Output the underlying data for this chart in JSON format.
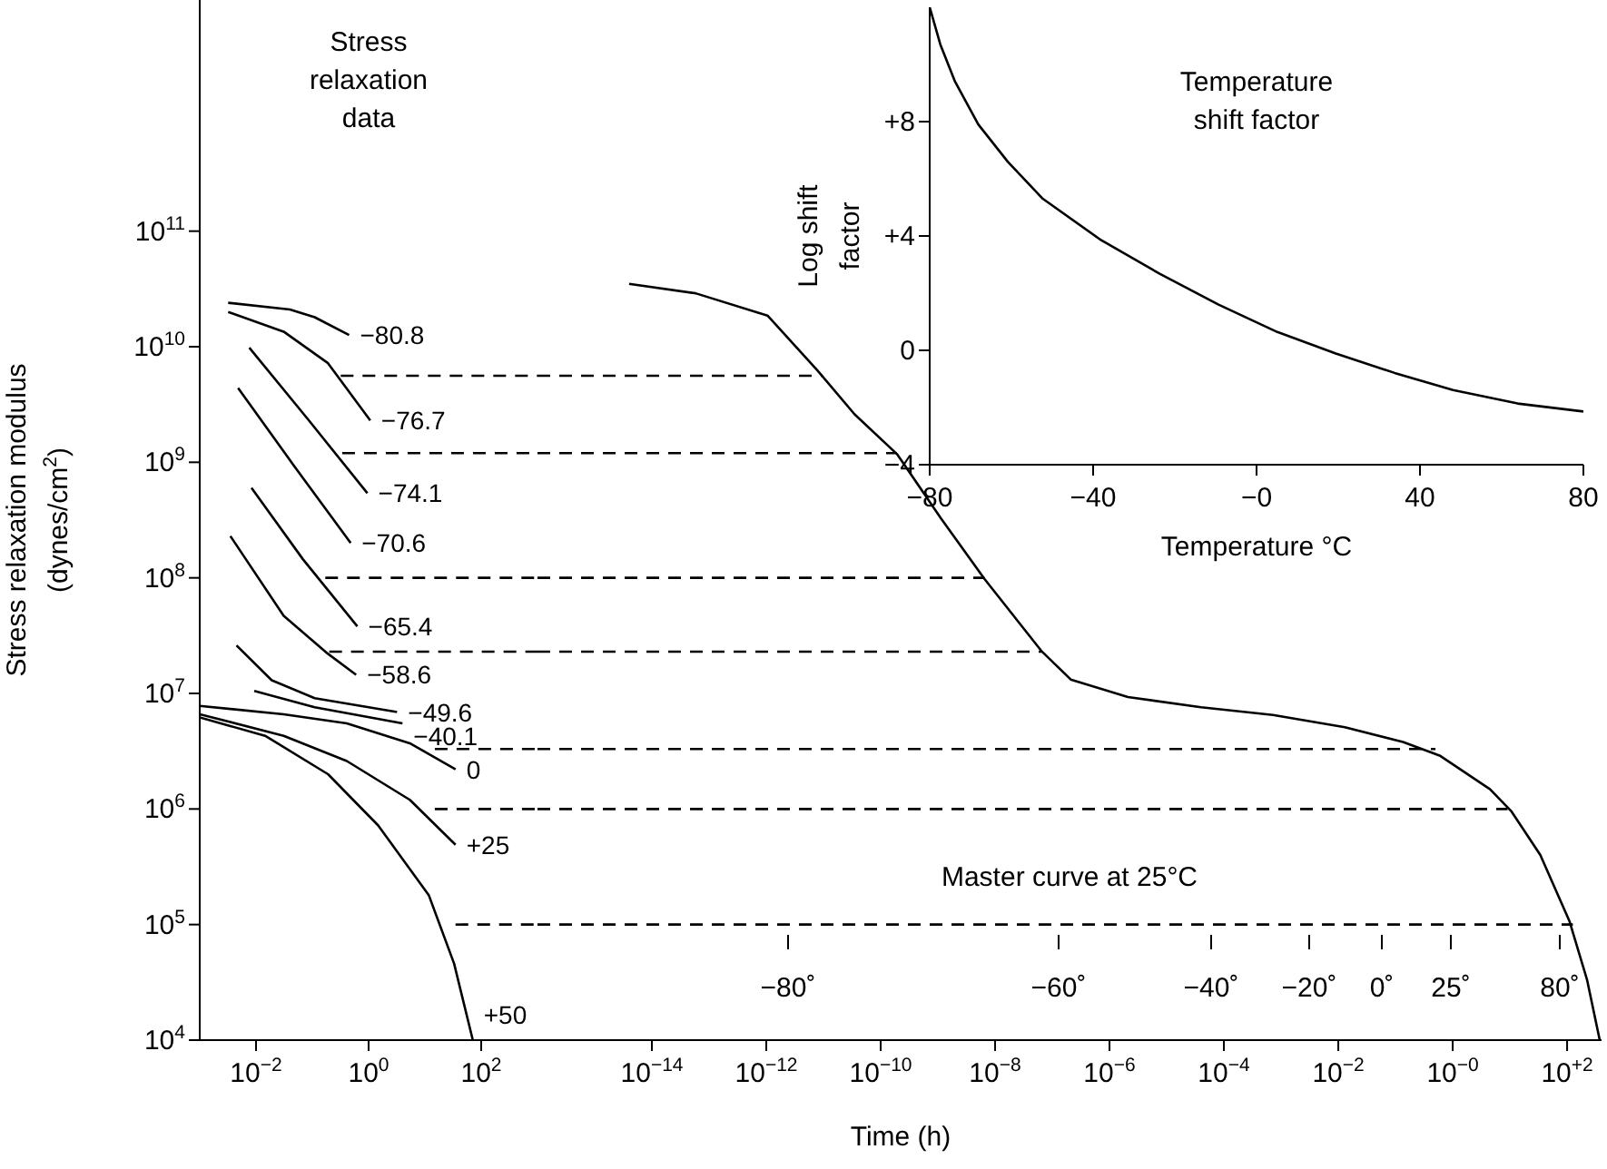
{
  "chart_data": [
    {
      "type": "line",
      "title": "Stress relaxation data",
      "ylabel": "Stress relaxation modulus (dynes/cm$^{2}$)",
      "log": "xy",
      "xlim": [
        0.001,
        1000
      ],
      "ylim": [
        10000,
        10000000000000
      ],
      "xticks": [
        {
          "value": 0.01,
          "label": "10$^{−2}$"
        },
        {
          "value": 1,
          "label": "10$^{0}$"
        },
        {
          "value": 100,
          "label": "10$^{2}$"
        }
      ],
      "yticks": [
        {
          "value": 10000,
          "label": "10$^{4}$"
        },
        {
          "value": 100000,
          "label": "10$^{5}$"
        },
        {
          "value": 1000000,
          "label": "10$^{6}$"
        },
        {
          "value": 10000000,
          "label": "10$^{7}$"
        },
        {
          "value": 100000000,
          "label": "10$^{8}$"
        },
        {
          "value": 1000000000,
          "label": "10$^{9}$"
        },
        {
          "value": 10000000000,
          "label": "10$^{10}$"
        },
        {
          "value": 100000000000,
          "label": "10$^{11}$"
        }
      ],
      "series": [
        {
          "name": "−80.8",
          "color": "#000000",
          "x": [
            0.0032,
            0.04,
            0.11,
            0.45
          ],
          "values": [
            24000000000,
            21000000000,
            18000000000,
            12600000000
          ]
        },
        {
          "name": "−76.7",
          "color": "#000000",
          "x": [
            0.0032,
            0.031,
            0.19,
            1.07
          ],
          "values": [
            20000000000,
            13500000000,
            7200000000,
            2300000000
          ]
        },
        {
          "name": "−74.1",
          "color": "#000000",
          "x": [
            0.0076,
            0.087,
            0.95
          ],
          "values": [
            9800000000,
            2300000000,
            540000000
          ]
        },
        {
          "name": "−70.6",
          "color": "#000000",
          "x": [
            0.0048,
            0.046,
            0.48
          ],
          "values": [
            4400000000,
            950000000,
            200000000
          ]
        },
        {
          "name": "−65.4",
          "color": "#000000",
          "x": [
            0.0083,
            0.068,
            0.63
          ],
          "values": [
            600000000,
            145000000,
            38000000
          ]
        },
        {
          "name": "−58.6",
          "color": "#000000",
          "x": [
            0.0035,
            0.031,
            0.19,
            0.6
          ],
          "values": [
            230000000,
            47000000,
            22000000,
            14500000
          ]
        },
        {
          "name": "−49.6",
          "color": "#000000",
          "x": [
            0.0045,
            0.019,
            0.11,
            3.2
          ],
          "values": [
            26000000,
            13000000,
            9100000,
            6900000
          ]
        },
        {
          "name": "−40.1",
          "color": "#000000",
          "x": [
            0.0093,
            0.11,
            4.0
          ],
          "values": [
            10500000,
            7600000,
            5500000
          ]
        },
        {
          "name": "0",
          "color": "#000000",
          "x": [
            0.001,
            0.031,
            0.41,
            5.4,
            35
          ],
          "values": [
            7800000,
            6600000,
            5500000,
            3700000,
            2200000
          ]
        },
        {
          "name": "+25",
          "color": "#000000",
          "x": [
            0.001,
            0.031,
            0.41,
            5.4,
            35
          ],
          "values": [
            6600000,
            4300000,
            2600000,
            1200000,
            490000
          ]
        },
        {
          "name": "+50",
          "color": "#000000",
          "x": [
            0.001,
            0.0145,
            0.19,
            1.48,
            11.7,
            33,
            71
          ],
          "values": [
            6200000,
            4300000,
            2000000,
            720000,
            180000,
            46000,
            10000
          ]
        },
        {
          "color": "#000000",
          "line_style": "dashed",
          "x": [
            0.32,
            1000
          ],
          "values": [
            5600000000,
            5600000000
          ]
        },
        {
          "color": "#000000",
          "line_style": "dashed",
          "x": [
            0.34,
            1000
          ],
          "values": [
            1200000000,
            1200000000
          ]
        },
        {
          "color": "#000000",
          "line_style": "dashed",
          "x": [
            0.17,
            1000
          ],
          "values": [
            100000000,
            100000000
          ]
        },
        {
          "color": "#000000",
          "line_style": "dashed",
          "x": [
            0.2,
            1000
          ],
          "values": [
            23000000,
            23000000
          ]
        },
        {
          "color": "#000000",
          "line_style": "dashed",
          "x": [
            15,
            1000
          ],
          "values": [
            3300000,
            3300000
          ]
        },
        {
          "color": "#000000",
          "line_style": "dashed",
          "x": [
            15,
            1000
          ],
          "values": [
            1000000,
            1000000
          ]
        },
        {
          "color": "#000000",
          "line_style": "dashed",
          "x": [
            35,
            1000
          ],
          "values": [
            100000,
            100000
          ]
        }
      ]
    },
    {
      "type": "line",
      "xlabel": "Time (h)",
      "log": "xy",
      "tick_labels": "x",
      "xlim": [
        1e-16,
        400
      ],
      "ylim": [
        10000,
        10000000000000
      ],
      "xticks": [
        {
          "value": 1e-14,
          "label": "10$^{−14}$"
        },
        {
          "value": 1e-12,
          "label": "10$^{−12}$"
        },
        {
          "value": 1e-10,
          "label": "10$^{−10}$"
        },
        {
          "value": 1e-08,
          "label": "10$^{−8}$"
        },
        {
          "value": 1e-06,
          "label": "10$^{−6}$"
        },
        {
          "value": 0.0001,
          "label": "10$^{−4}$"
        },
        {
          "value": 0.01,
          "label": "10$^{−2}$"
        },
        {
          "value": 1,
          "label": "10$^{−0}$"
        },
        {
          "value": 100,
          "label": "10$^{+2}$"
        }
      ],
      "yticks": [
        {
          "value": 10000,
          "label": null
        },
        {
          "value": 100000,
          "label": null
        },
        {
          "value": 1000000,
          "label": null
        },
        {
          "value": 10000000,
          "label": null
        },
        {
          "value": 100000000,
          "label": null
        },
        {
          "value": 1000000000,
          "label": null
        },
        {
          "value": 10000000000,
          "label": null
        },
        {
          "value": 100000000000,
          "label": null
        }
      ],
      "annotations": [
        "Master curve at 25°C",
        "−80˚",
        "−60˚",
        "−40˚",
        "−20˚",
        "0˚",
        "25˚",
        "80˚"
      ],
      "series": [
        {
          "color": "#000000",
          "x": [
            4e-15,
            5.8e-14,
            1.05e-12,
            7.9e-12,
            3.5e-11,
            1.95e-10,
            1.12e-09,
            6.5e-09,
            6.6e-08,
            2.1e-07,
            2.1e-06,
            4e-05,
            0.00072,
            0.013,
            0.135,
            0.59,
            4.5,
            10.7,
            34,
            110,
            224,
            372
          ],
          "values": [
            35000000000,
            29000000000,
            18600000000,
            6200000000,
            2600000000,
            1170000000,
            330000000,
            98000000,
            23000000,
            13200000,
            9300000,
            7600000,
            6500000,
            5100000,
            3800000,
            2900000,
            1480000,
            950000,
            400000,
            107000,
            33000,
            10000
          ]
        },
        {
          "color": "#000000",
          "line_style": "dashed",
          "x": [
            1e-16,
            9.3e-12
          ],
          "values": [
            5600000000,
            5600000000
          ]
        },
        {
          "color": "#000000",
          "line_style": "dashed",
          "x": [
            1e-16,
            1.9e-10
          ],
          "values": [
            1200000000,
            1200000000
          ]
        },
        {
          "color": "#000000",
          "line_style": "dashed",
          "x": [
            1e-16,
            6.5e-09
          ],
          "values": [
            100000000,
            100000000
          ]
        },
        {
          "color": "#000000",
          "line_style": "dashed",
          "x": [
            1e-16,
            6.6e-08
          ],
          "values": [
            23000000,
            23000000
          ]
        },
        {
          "color": "#000000",
          "line_style": "dashed",
          "x": [
            1e-16,
            0.5
          ],
          "values": [
            3300000,
            3300000
          ]
        },
        {
          "color": "#000000",
          "line_style": "dashed",
          "x": [
            1e-16,
            9.1
          ],
          "values": [
            1000000,
            1000000
          ]
        },
        {
          "color": "#000000",
          "line_style": "dashed",
          "x": [
            1e-16,
            126
          ],
          "values": [
            100000,
            100000
          ]
        }
      ]
    },
    {
      "type": "line",
      "title": "Temperature shift factor",
      "xlabel": "Temperature °C",
      "ylabel": "Log shift factor",
      "xlim": [
        -80,
        80
      ],
      "ylim": [
        -4,
        12
      ],
      "xticks": [
        {
          "value": -80,
          "label": "−80"
        },
        {
          "value": -40,
          "label": "−40"
        },
        {
          "value": 0,
          "label": "−0"
        },
        40,
        80
      ],
      "yticks": [
        {
          "value": -4,
          "label": "−4"
        },
        0,
        {
          "value": 4,
          "label": "+4"
        },
        {
          "value": 8,
          "label": "+8"
        }
      ],
      "series": [
        {
          "color": "#000000",
          "x": [
            -80,
            -77.4,
            -73.8,
            -68.1,
            -60.9,
            -52.3,
            -38,
            -23.6,
            -9.3,
            5.1,
            19.4,
            33.8,
            48.1,
            63.9,
            80
          ],
          "values": [
            12,
            10.7,
            9.4,
            7.9,
            6.6,
            5.3,
            3.85,
            2.67,
            1.6,
            0.64,
            -0.11,
            -0.79,
            -1.39,
            -1.86,
            -2.14
          ]
        }
      ]
    }
  ]
}
